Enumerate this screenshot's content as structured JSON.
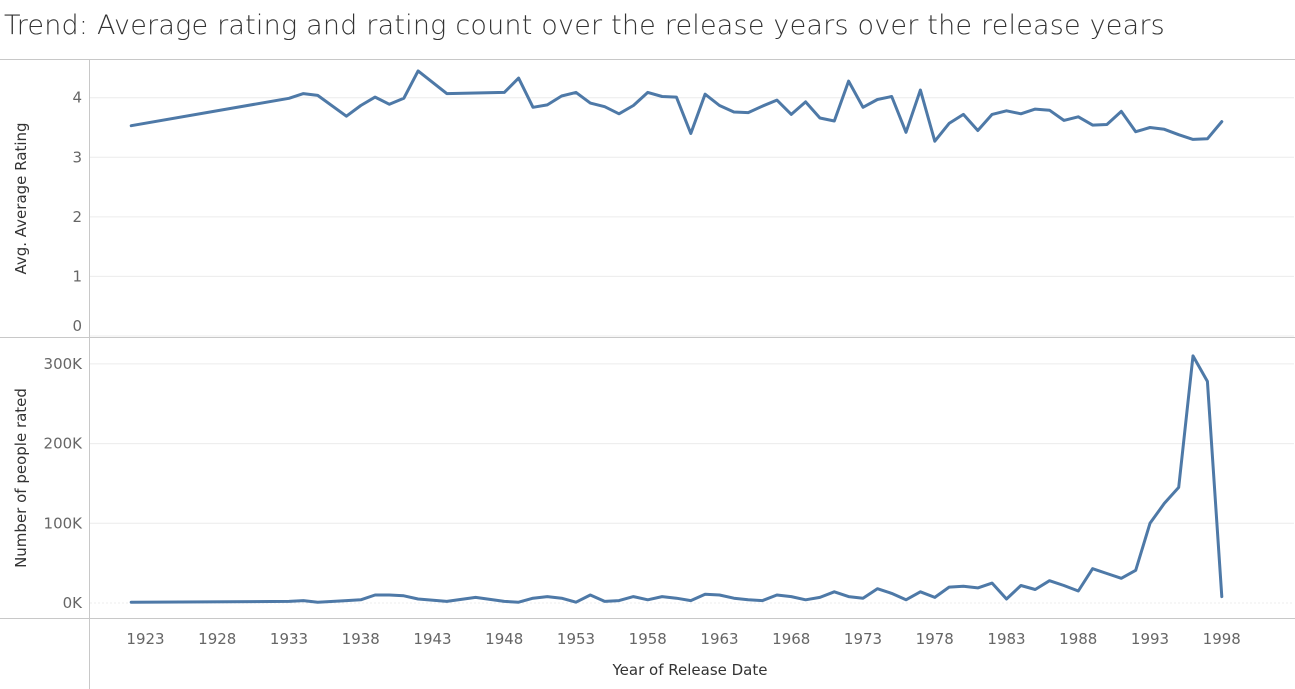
{
  "title": "Trend: Average rating and rating count over the release years over the release years",
  "colors": {
    "line": "#4e79a7",
    "grid": "#ececec",
    "axis": "#c8c8c8",
    "text": "#333333",
    "tick": "#666666"
  },
  "chart_data": {
    "type": "line",
    "x_label": "Year of Release Date",
    "x_ticks": [
      "1923",
      "1928",
      "1933",
      "1938",
      "1943",
      "1948",
      "1953",
      "1958",
      "1963",
      "1968",
      "1973",
      "1978",
      "1983",
      "1988",
      "1993",
      "1998"
    ],
    "x_range": [
      1922,
      2000
    ],
    "panels": [
      {
        "ylabel": "Avg. Average Rating",
        "ylim": [
          0,
          4.6
        ],
        "y_ticks": [
          0,
          1,
          2,
          3,
          4
        ],
        "y_tick_labels": [
          "0",
          "1",
          "2",
          "3",
          "4"
        ],
        "series": [
          {
            "x": [
              1922,
              1933,
              1934,
              1935,
              1937,
              1938,
              1939,
              1940,
              1941,
              1942,
              1944,
              1948,
              1949,
              1950,
              1951,
              1952,
              1953,
              1954,
              1955,
              1956,
              1957,
              1958,
              1959,
              1960,
              1961,
              1962,
              1963,
              1964,
              1965,
              1966,
              1967,
              1968,
              1969,
              1970,
              1971,
              1972,
              1973,
              1974,
              1975,
              1976,
              1977,
              1978,
              1979,
              1980,
              1981,
              1982,
              1983,
              1984,
              1985,
              1986,
              1987,
              1988,
              1989,
              1990,
              1991,
              1992,
              1993,
              1994,
              1995,
              1996,
              1997,
              1998
            ],
            "y": [
              3.53,
              3.99,
              4.07,
              4.04,
              3.69,
              3.87,
              4.01,
              3.89,
              3.99,
              4.45,
              4.07,
              4.09,
              4.33,
              3.84,
              3.88,
              4.03,
              4.09,
              3.91,
              3.85,
              3.73,
              3.87,
              4.09,
              4.02,
              4.01,
              3.4,
              4.06,
              3.87,
              3.76,
              3.75,
              3.86,
              3.96,
              3.72,
              3.93,
              3.66,
              3.61,
              4.28,
              3.84,
              3.97,
              4.02,
              3.42,
              4.13,
              3.27,
              3.57,
              3.72,
              3.45,
              3.72,
              3.78,
              3.73,
              3.81,
              3.79,
              3.62,
              3.68,
              3.54,
              3.55,
              3.77,
              3.43,
              3.5,
              3.47,
              3.38,
              3.3,
              3.31,
              3.6
            ]
          }
        ]
      },
      {
        "ylabel": "Number of people rated",
        "ylim": [
          0,
          330000
        ],
        "y_ticks": [
          0,
          100000,
          200000,
          300000
        ],
        "y_tick_labels": [
          "0K",
          "100K",
          "200K",
          "300K"
        ],
        "series": [
          {
            "x": [
              1922,
              1933,
              1934,
              1935,
              1937,
              1938,
              1939,
              1940,
              1941,
              1942,
              1944,
              1946,
              1948,
              1949,
              1950,
              1951,
              1952,
              1953,
              1954,
              1955,
              1956,
              1957,
              1958,
              1959,
              1960,
              1961,
              1962,
              1963,
              1964,
              1965,
              1966,
              1967,
              1968,
              1969,
              1970,
              1971,
              1972,
              1973,
              1974,
              1975,
              1976,
              1977,
              1978,
              1979,
              1980,
              1981,
              1982,
              1983,
              1984,
              1985,
              1986,
              1987,
              1988,
              1989,
              1990,
              1991,
              1992,
              1993,
              1994,
              1995,
              1996,
              1997,
              1998
            ],
            "y": [
              1000,
              2000,
              3000,
              1000,
              3000,
              4000,
              10000,
              10000,
              9000,
              5000,
              2000,
              7000,
              2000,
              1000,
              6000,
              8000,
              6000,
              1000,
              10000,
              2000,
              3000,
              8000,
              4000,
              8000,
              6000,
              3000,
              11000,
              10000,
              6000,
              4000,
              3000,
              10000,
              8000,
              4000,
              7000,
              14000,
              8000,
              6000,
              18000,
              12000,
              4000,
              14000,
              7000,
              20000,
              21000,
              19000,
              25000,
              5000,
              22000,
              17000,
              28000,
              22000,
              15000,
              43000,
              37000,
              31000,
              41000,
              100000,
              125000,
              145000,
              310000,
              278000,
              8000
            ]
          }
        ]
      }
    ]
  }
}
